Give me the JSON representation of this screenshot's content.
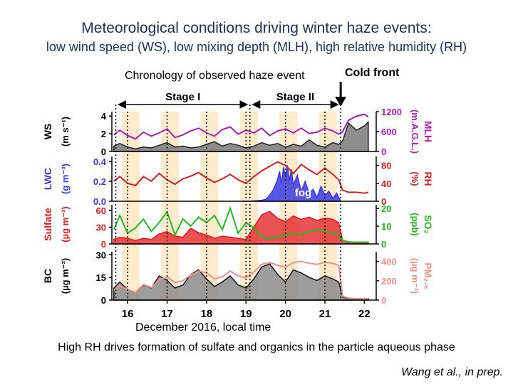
{
  "titles": {
    "main": "Meteorological conditions driving winter haze events:",
    "sub": "low wind speed (WS), low mixing depth (MLH), high relative humidity (RH)"
  },
  "annotations": {
    "chronology": "Chronology of observed haze event",
    "cold_front": "Cold front",
    "stage1": "Stage I",
    "stage2": "Stage II",
    "fog": "fog"
  },
  "xlabel": "December 2016, local time",
  "footer": "High RH drives formation of sulfate and organics in the particle aqueous phase",
  "citation": "Wang et al., in prep.",
  "chart_data": {
    "type": "line",
    "x_range": [
      15.6,
      22.3
    ],
    "x_ticks": [
      16,
      17,
      18,
      19,
      20,
      21,
      22
    ],
    "x_tick_labels": [
      "16",
      "17",
      "18",
      "19",
      "20",
      "21",
      "22"
    ],
    "stage_boundaries": [
      15.7,
      19.1,
      21.4
    ],
    "cold_front_x": 21.4,
    "night_bands": [
      [
        15.85,
        16.3
      ],
      [
        16.85,
        17.3
      ],
      [
        17.85,
        18.3
      ],
      [
        18.85,
        19.3
      ],
      [
        19.85,
        20.3
      ],
      [
        20.85,
        21.3
      ]
    ],
    "colors": {
      "ws": "#222222",
      "mlh": "#b020b0",
      "lwc": "#3a3adf",
      "rh": "#d32020",
      "sulfate": "#e31a1c",
      "so2": "#22bb22",
      "bc": "#111111",
      "pm": "#f0908a",
      "night_band": "#fdebcc",
      "annotation": "#1f2f5c"
    },
    "panels": [
      {
        "left_label": "WS",
        "left_unit": "(m s⁻¹)",
        "right_label": "MLH",
        "right_unit": "(m.A.G.L.)",
        "left_ticks": [
          0,
          2,
          4
        ],
        "right_ticks": [
          0,
          600,
          1200
        ],
        "left_range": [
          0,
          4.5
        ],
        "right_range": [
          0,
          1200
        ],
        "series": [
          {
            "key": "ws",
            "name": "WS",
            "axis": "left",
            "style": "fill",
            "color_key": "ws",
            "x": [
              15.65,
              15.8,
              16.0,
              16.2,
              16.4,
              16.6,
              16.8,
              17.0,
              17.2,
              17.4,
              17.6,
              17.8,
              18.0,
              18.2,
              18.4,
              18.6,
              18.8,
              19.0,
              19.2,
              19.4,
              19.6,
              19.8,
              20.0,
              20.2,
              20.4,
              20.6,
              20.8,
              21.0,
              21.2,
              21.35,
              21.45,
              21.6,
              21.8,
              22.0,
              22.1
            ],
            "y": [
              0.6,
              0.9,
              0.5,
              0.3,
              0.5,
              0.4,
              0.7,
              1.0,
              0.5,
              0.6,
              0.4,
              0.5,
              0.8,
              1.1,
              0.6,
              0.9,
              0.7,
              0.4,
              0.6,
              1.0,
              0.7,
              0.9,
              0.5,
              0.8,
              0.6,
              1.3,
              0.7,
              0.5,
              1.0,
              0.8,
              1.2,
              3.2,
              2.4,
              2.9,
              3.3
            ]
          },
          {
            "key": "mlh",
            "name": "MLH",
            "axis": "right",
            "style": "line",
            "color_key": "mlh",
            "x": [
              15.65,
              15.8,
              16.0,
              16.2,
              16.4,
              16.6,
              16.8,
              17.0,
              17.2,
              17.4,
              17.6,
              17.8,
              18.0,
              18.2,
              18.4,
              18.6,
              18.8,
              19.0,
              19.2,
              19.4,
              19.6,
              19.8,
              20.0,
              20.2,
              20.4,
              20.6,
              20.8,
              21.0,
              21.2,
              21.35,
              21.45,
              21.6,
              21.8,
              22.0,
              22.1
            ],
            "y": [
              500,
              640,
              480,
              380,
              580,
              460,
              560,
              680,
              420,
              500,
              620,
              700,
              560,
              460,
              660,
              740,
              520,
              640,
              560,
              700,
              480,
              620,
              680,
              560,
              700,
              540,
              580,
              700,
              620,
              520,
              600,
              940,
              1060,
              1120,
              1040
            ]
          }
        ]
      },
      {
        "left_label": "LWC",
        "left_unit": "(g m⁻³)",
        "right_label": "RH",
        "right_unit": "(%)",
        "left_ticks": [
          0.0,
          0.2,
          0.4
        ],
        "right_ticks": [
          0,
          40,
          80
        ],
        "left_tick_labels": [
          "0.0",
          "0.2",
          "0.4"
        ],
        "left_range": [
          0,
          0.45
        ],
        "right_range": [
          0,
          100
        ],
        "series": [
          {
            "key": "lwc",
            "name": "LWC",
            "axis": "left",
            "style": "fill",
            "color_key": "lwc",
            "x": [
              18.9,
              19.1,
              19.4,
              19.5,
              19.6,
              19.7,
              19.8,
              19.85,
              19.9,
              19.95,
              20.0,
              20.05,
              20.1,
              20.15,
              20.2,
              20.3,
              20.4,
              20.5,
              20.6,
              20.7,
              20.8,
              20.9,
              21.0,
              21.1,
              21.2,
              21.3,
              21.4
            ],
            "y": [
              0.0,
              0.0,
              0.01,
              0.02,
              0.06,
              0.12,
              0.22,
              0.3,
              0.18,
              0.34,
              0.25,
              0.36,
              0.2,
              0.32,
              0.16,
              0.26,
              0.1,
              0.2,
              0.08,
              0.12,
              0.04,
              0.15,
              0.06,
              0.1,
              0.03,
              0.08,
              0.0
            ]
          },
          {
            "key": "rh",
            "name": "RH",
            "axis": "right",
            "style": "line",
            "color_key": "rh",
            "x": [
              15.65,
              15.8,
              16.0,
              16.2,
              16.4,
              16.6,
              16.8,
              17.0,
              17.2,
              17.4,
              17.6,
              17.8,
              18.0,
              18.2,
              18.4,
              18.6,
              18.8,
              19.0,
              19.2,
              19.4,
              19.6,
              19.8,
              20.0,
              20.2,
              20.4,
              20.6,
              20.8,
              21.0,
              21.2,
              21.35,
              21.45,
              21.6,
              21.8,
              22.0,
              22.1
            ],
            "y": [
              45,
              55,
              40,
              35,
              55,
              45,
              62,
              48,
              38,
              50,
              56,
              64,
              52,
              42,
              50,
              60,
              48,
              40,
              55,
              68,
              78,
              88,
              80,
              62,
              82,
              70,
              60,
              74,
              60,
              48,
              25,
              20,
              20,
              18,
              20
            ]
          }
        ]
      },
      {
        "left_label": "Sulfate",
        "left_unit": "(µg m⁻³)",
        "right_label": "SO₂",
        "right_unit": "(ppb)",
        "left_ticks": [
          0,
          30,
          60
        ],
        "right_ticks": [
          0,
          10,
          20
        ],
        "left_range": [
          0,
          70
        ],
        "right_range": [
          0,
          22
        ],
        "series": [
          {
            "key": "sulfate",
            "name": "Sulfate",
            "axis": "left",
            "style": "fill",
            "color_key": "sulfate",
            "x": [
              15.65,
              15.8,
              16.0,
              16.2,
              16.4,
              16.6,
              16.8,
              17.0,
              17.2,
              17.4,
              17.6,
              17.8,
              18.0,
              18.2,
              18.4,
              18.6,
              18.8,
              19.0,
              19.2,
              19.4,
              19.6,
              19.8,
              20.0,
              20.2,
              20.4,
              20.6,
              20.8,
              21.0,
              21.2,
              21.35,
              21.45,
              21.6,
              21.8,
              22.0,
              22.1
            ],
            "y": [
              8,
              12,
              10,
              6,
              10,
              8,
              18,
              22,
              14,
              12,
              28,
              20,
              16,
              10,
              14,
              12,
              10,
              8,
              30,
              52,
              58,
              46,
              40,
              50,
              44,
              48,
              42,
              46,
              44,
              38,
              6,
              4,
              3,
              3,
              3
            ]
          },
          {
            "key": "so2",
            "name": "SO₂",
            "axis": "right",
            "style": "line",
            "color_key": "so2",
            "x": [
              15.65,
              15.8,
              16.0,
              16.2,
              16.4,
              16.6,
              16.8,
              17.0,
              17.2,
              17.4,
              17.6,
              17.8,
              18.0,
              18.2,
              18.4,
              18.6,
              18.8,
              19.0,
              19.2,
              19.4,
              19.6,
              19.8,
              20.0,
              20.2,
              20.4,
              20.6,
              20.8,
              21.0,
              21.2,
              21.35,
              21.45,
              21.6,
              21.8,
              22.0,
              22.1
            ],
            "y": [
              8,
              16,
              6,
              9,
              14,
              7,
              12,
              18,
              5,
              14,
              10,
              15,
              12,
              16,
              8,
              20,
              6,
              12,
              9,
              4,
              3,
              4,
              5,
              6,
              5,
              7,
              8,
              7,
              6,
              5,
              2,
              1,
              1,
              1,
              1
            ]
          }
        ]
      },
      {
        "left_label": "BC",
        "left_unit": "(µg m⁻³)",
        "right_label": "PM₂.₅",
        "right_unit": "(µg m⁻³)",
        "left_ticks": [
          0,
          15,
          30
        ],
        "right_ticks": [
          0,
          200,
          400
        ],
        "left_range": [
          0,
          32
        ],
        "right_range": [
          0,
          500
        ],
        "series": [
          {
            "key": "bc",
            "name": "BC",
            "axis": "left",
            "style": "fill",
            "color_key": "bc",
            "x": [
              15.65,
              15.8,
              16.0,
              16.2,
              16.4,
              16.6,
              16.8,
              17.0,
              17.2,
              17.4,
              17.6,
              17.8,
              18.0,
              18.2,
              18.4,
              18.6,
              18.8,
              19.0,
              19.2,
              19.4,
              19.6,
              19.8,
              20.0,
              20.2,
              20.4,
              20.6,
              20.8,
              21.0,
              21.2,
              21.35,
              21.45,
              21.6,
              21.8,
              22.0,
              22.1
            ],
            "y": [
              8,
              12,
              7,
              5,
              10,
              8,
              16,
              13,
              8,
              10,
              17,
              20,
              14,
              9,
              12,
              16,
              10,
              8,
              14,
              22,
              24,
              17,
              12,
              20,
              18,
              15,
              13,
              16,
              14,
              12,
              2,
              1,
              1,
              1,
              1
            ]
          },
          {
            "key": "pm",
            "name": "PM₂.₅",
            "axis": "right",
            "style": "line",
            "color_key": "pm",
            "x": [
              15.65,
              15.8,
              16.0,
              16.2,
              16.4,
              16.6,
              16.8,
              17.0,
              17.2,
              17.4,
              17.6,
              17.8,
              18.0,
              18.2,
              18.4,
              18.6,
              18.8,
              19.0,
              19.2,
              19.4,
              19.6,
              19.8,
              20.0,
              20.2,
              20.4,
              20.6,
              20.8,
              21.0,
              21.2,
              21.35,
              21.45,
              21.6,
              21.8,
              22.0,
              22.1
            ],
            "y": [
              100,
              150,
              110,
              80,
              160,
              130,
              210,
              240,
              180,
              200,
              260,
              300,
              280,
              220,
              240,
              300,
              250,
              230,
              290,
              370,
              390,
              360,
              340,
              390,
              400,
              380,
              370,
              390,
              380,
              360,
              40,
              20,
              15,
              15,
              15
            ]
          }
        ]
      }
    ]
  }
}
